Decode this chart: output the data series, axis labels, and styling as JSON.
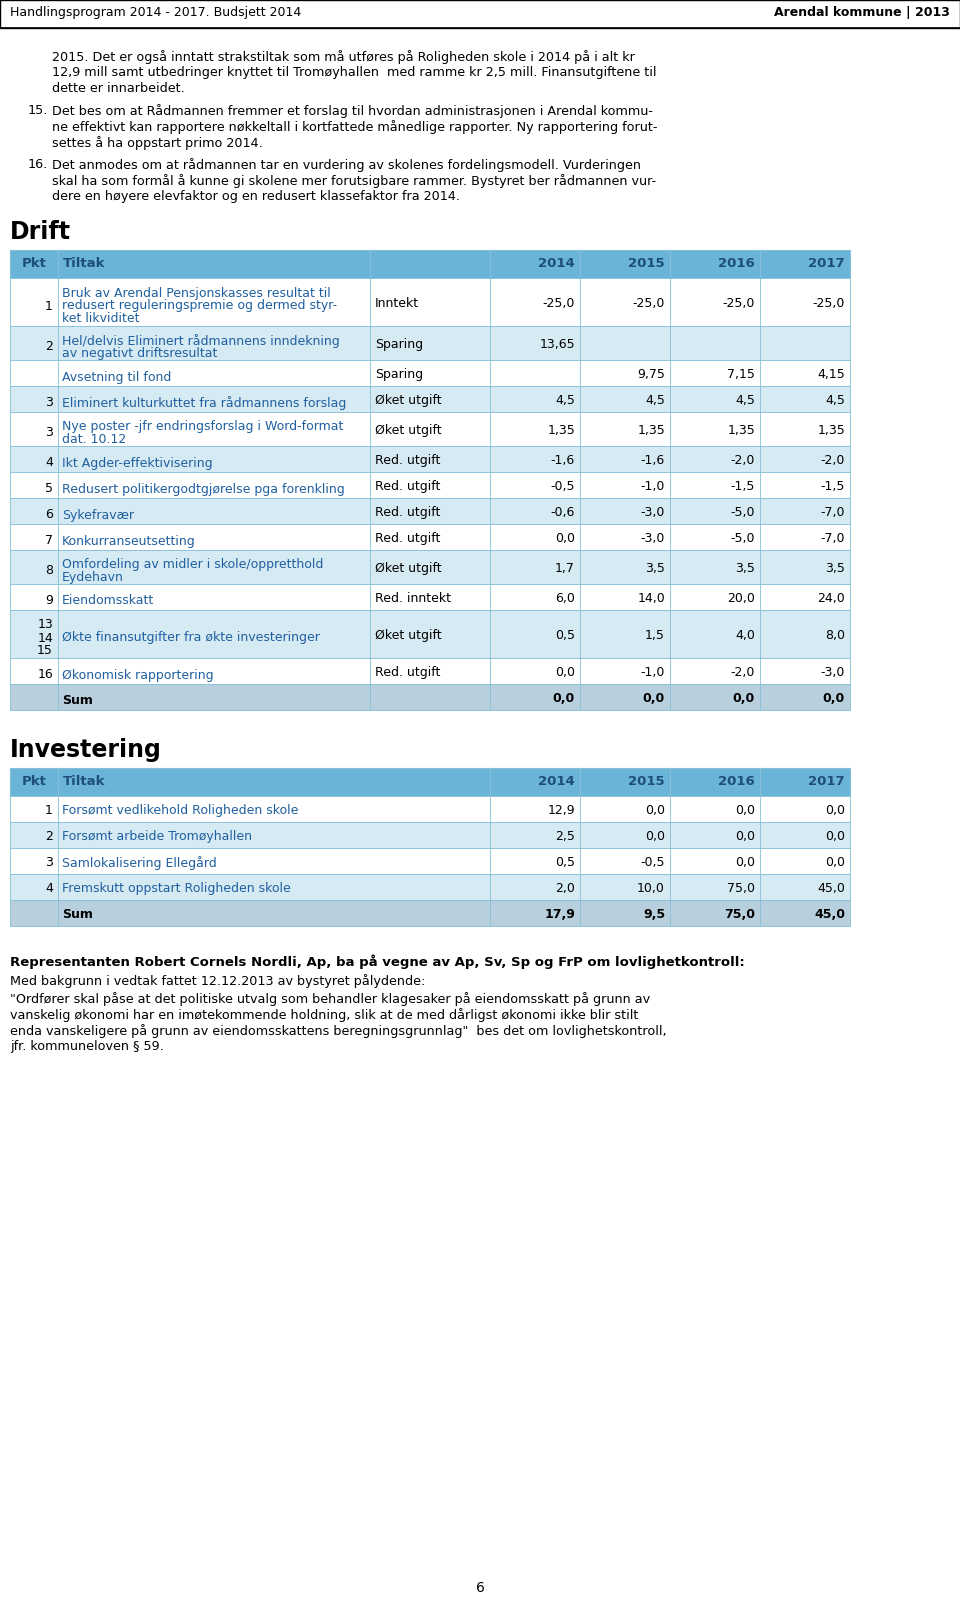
{
  "header_left": "Handlingsprogram 2014 - 2017. Budsjett 2014",
  "header_right": "Arendal kommune | 2013",
  "intro_text": "2015. Det er også inntatt strakstiltak som må utføres på Roligheden skole i 2014 på i alt kr\n12,9 mill samt utbedringer knyttet til Tromøyhallen  med ramme kr 2,5 mill. Finansutgiftene til\ndette er innarbeidet.",
  "point15": "Det bes om at Rådmannen fremmer et forslag til hvordan administrasjonen i Arendal kommu-\nne effektivt kan rapportere nøkkeltall i kortfattede månedlige rapporter. Ny rapportering forut-\nsettes å ha oppstart primo 2014.",
  "point16": "Det anmodes om at rådmannen tar en vurdering av skolenes fordelingsmodell. Vurderingen\nskal ha som formål å kunne gi skolene mer forutsigbare rammer. Bystyret ber rådmannen vur-\ndere en høyere elevfaktor og en redusert klassefaktor fra 2014.",
  "drift_title": "Drift",
  "investering_title": "Investering",
  "drift_rows": [
    {
      "pkt": "1",
      "tiltak": "Bruk av Arendal Pensjonskasses resultat til\nredusert reguleringspremie og dermed styr-\nket likviditet",
      "type": "Inntekt",
      "v2014": "-25,0",
      "v2015": "-25,0",
      "v2016": "-25,0",
      "v2017": "-25,0",
      "shade": false,
      "sum_row": false
    },
    {
      "pkt": "2",
      "tiltak": "Hel/delvis Eliminert rådmannens inndekning\nav negativt driftsresultat",
      "type": "Sparing",
      "v2014": "13,65",
      "v2015": "",
      "v2016": "",
      "v2017": "",
      "shade": true,
      "sum_row": false
    },
    {
      "pkt": "",
      "tiltak": "Avsetning til fond",
      "type": "Sparing",
      "v2014": "",
      "v2015": "9,75",
      "v2016": "7,15",
      "v2017": "4,15",
      "shade": false,
      "sum_row": false
    },
    {
      "pkt": "3",
      "tiltak": "Eliminert kulturkuttet fra rådmannens forslag",
      "type": "Øket utgift",
      "v2014": "4,5",
      "v2015": "4,5",
      "v2016": "4,5",
      "v2017": "4,5",
      "shade": true,
      "sum_row": false
    },
    {
      "pkt": "3",
      "tiltak": "Nye poster -jfr endringsforslag i Word-format\ndat. 10.12",
      "type": "Øket utgift",
      "v2014": "1,35",
      "v2015": "1,35",
      "v2016": "1,35",
      "v2017": "1,35",
      "shade": false,
      "sum_row": false
    },
    {
      "pkt": "4",
      "tiltak": "Ikt Agder-effektivisering",
      "type": "Red. utgift",
      "v2014": "-1,6",
      "v2015": "-1,6",
      "v2016": "-2,0",
      "v2017": "-2,0",
      "shade": true,
      "sum_row": false
    },
    {
      "pkt": "5",
      "tiltak": "Redusert politikergodtgjørelse pga forenkling",
      "type": "Red. utgift",
      "v2014": "-0,5",
      "v2015": "-1,0",
      "v2016": "-1,5",
      "v2017": "-1,5",
      "shade": false,
      "sum_row": false
    },
    {
      "pkt": "6",
      "tiltak": "Sykefravær",
      "type": "Red. utgift",
      "v2014": "-0,6",
      "v2015": "-3,0",
      "v2016": "-5,0",
      "v2017": "-7,0",
      "shade": true,
      "sum_row": false
    },
    {
      "pkt": "7",
      "tiltak": "Konkurranseutsetting",
      "type": "Red. utgift",
      "v2014": "0,0",
      "v2015": "-3,0",
      "v2016": "-5,0",
      "v2017": "-7,0",
      "shade": false,
      "sum_row": false
    },
    {
      "pkt": "8",
      "tiltak": "Omfordeling av midler i skole/oppretthold\nEydehavn",
      "type": "Øket utgift",
      "v2014": "1,7",
      "v2015": "3,5",
      "v2016": "3,5",
      "v2017": "3,5",
      "shade": true,
      "sum_row": false
    },
    {
      "pkt": "9",
      "tiltak": "Eiendomsskatt",
      "type": "Red. inntekt",
      "v2014": "6,0",
      "v2015": "14,0",
      "v2016": "20,0",
      "v2017": "24,0",
      "shade": false,
      "sum_row": false
    },
    {
      "pkt": "13\n14\n15",
      "tiltak": "Økte finansutgifter fra økte investeringer",
      "type": "Øket utgift",
      "v2014": "0,5",
      "v2015": "1,5",
      "v2016": "4,0",
      "v2017": "8,0",
      "shade": true,
      "sum_row": false
    },
    {
      "pkt": "16",
      "tiltak": "Økonomisk rapportering",
      "type": "Red. utgift",
      "v2014": "0,0",
      "v2015": "-1,0",
      "v2016": "-2,0",
      "v2017": "-3,0",
      "shade": false,
      "sum_row": false
    },
    {
      "pkt": "",
      "tiltak": "Sum",
      "type": "",
      "v2014": "0,0",
      "v2015": "0,0",
      "v2016": "0,0",
      "v2017": "0,0",
      "shade": true,
      "sum_row": true
    }
  ],
  "investering_rows": [
    {
      "pkt": "1",
      "tiltak": "Forsømt vedlikehold Roligheden skole",
      "v2014": "12,9",
      "v2015": "0,0",
      "v2016": "0,0",
      "v2017": "0,0",
      "shade": false,
      "sum_row": false
    },
    {
      "pkt": "2",
      "tiltak": "Forsømt arbeide Tromøyhallen",
      "v2014": "2,5",
      "v2015": "0,0",
      "v2016": "0,0",
      "v2017": "0,0",
      "shade": true,
      "sum_row": false
    },
    {
      "pkt": "3",
      "tiltak": "Samlokalisering Ellegård",
      "v2014": "0,5",
      "v2015": "-0,5",
      "v2016": "0,0",
      "v2017": "0,0",
      "shade": false,
      "sum_row": false
    },
    {
      "pkt": "4",
      "tiltak": "Fremskutt oppstart Roligheden skole",
      "v2014": "2,0",
      "v2015": "10,0",
      "v2016": "75,0",
      "v2017": "45,0",
      "shade": true,
      "sum_row": false
    },
    {
      "pkt": "",
      "tiltak": "Sum",
      "v2014": "17,9",
      "v2015": "9,5",
      "v2016": "75,0",
      "v2017": "45,0",
      "shade": false,
      "sum_row": true
    }
  ],
  "footer_bold_text": "Representanten Robert Cornels Nordli, Ap, ba på vegne av Ap, Sv, Sp og FrP om lovlighetkontroll:",
  "footer_text1": "Med bakgrunn i vedtak fattet 12.12.2013 av bystyret pålydende:",
  "footer_text2": "\"Ordfører skal påse at det politiske utvalg som behandler klagesaker på eiendomsskatt på grunn av\nvanskelig økonomi har en imøtekommende holdning, slik at de med dårligst økonomi ikke blir stilt\nenda vanskeligere på grunn av eiendomsskattens beregningsgrunnlag\"  bes det om lovlighetskontroll,\njfr. kommuneloven § 59.",
  "page_number": "6",
  "header_bg": "#ffffff",
  "header_line_color": "#000000",
  "table_header_bg": "#6ab4d8",
  "table_header_text": "#1e4f7a",
  "row_alt_bg": "#d6eaf4",
  "row_white_bg": "#ffffff",
  "sum_row_bg": "#b8d0de",
  "border_color": "#85c0d8",
  "blue_text": "#2060a0",
  "black_text": "#000000"
}
